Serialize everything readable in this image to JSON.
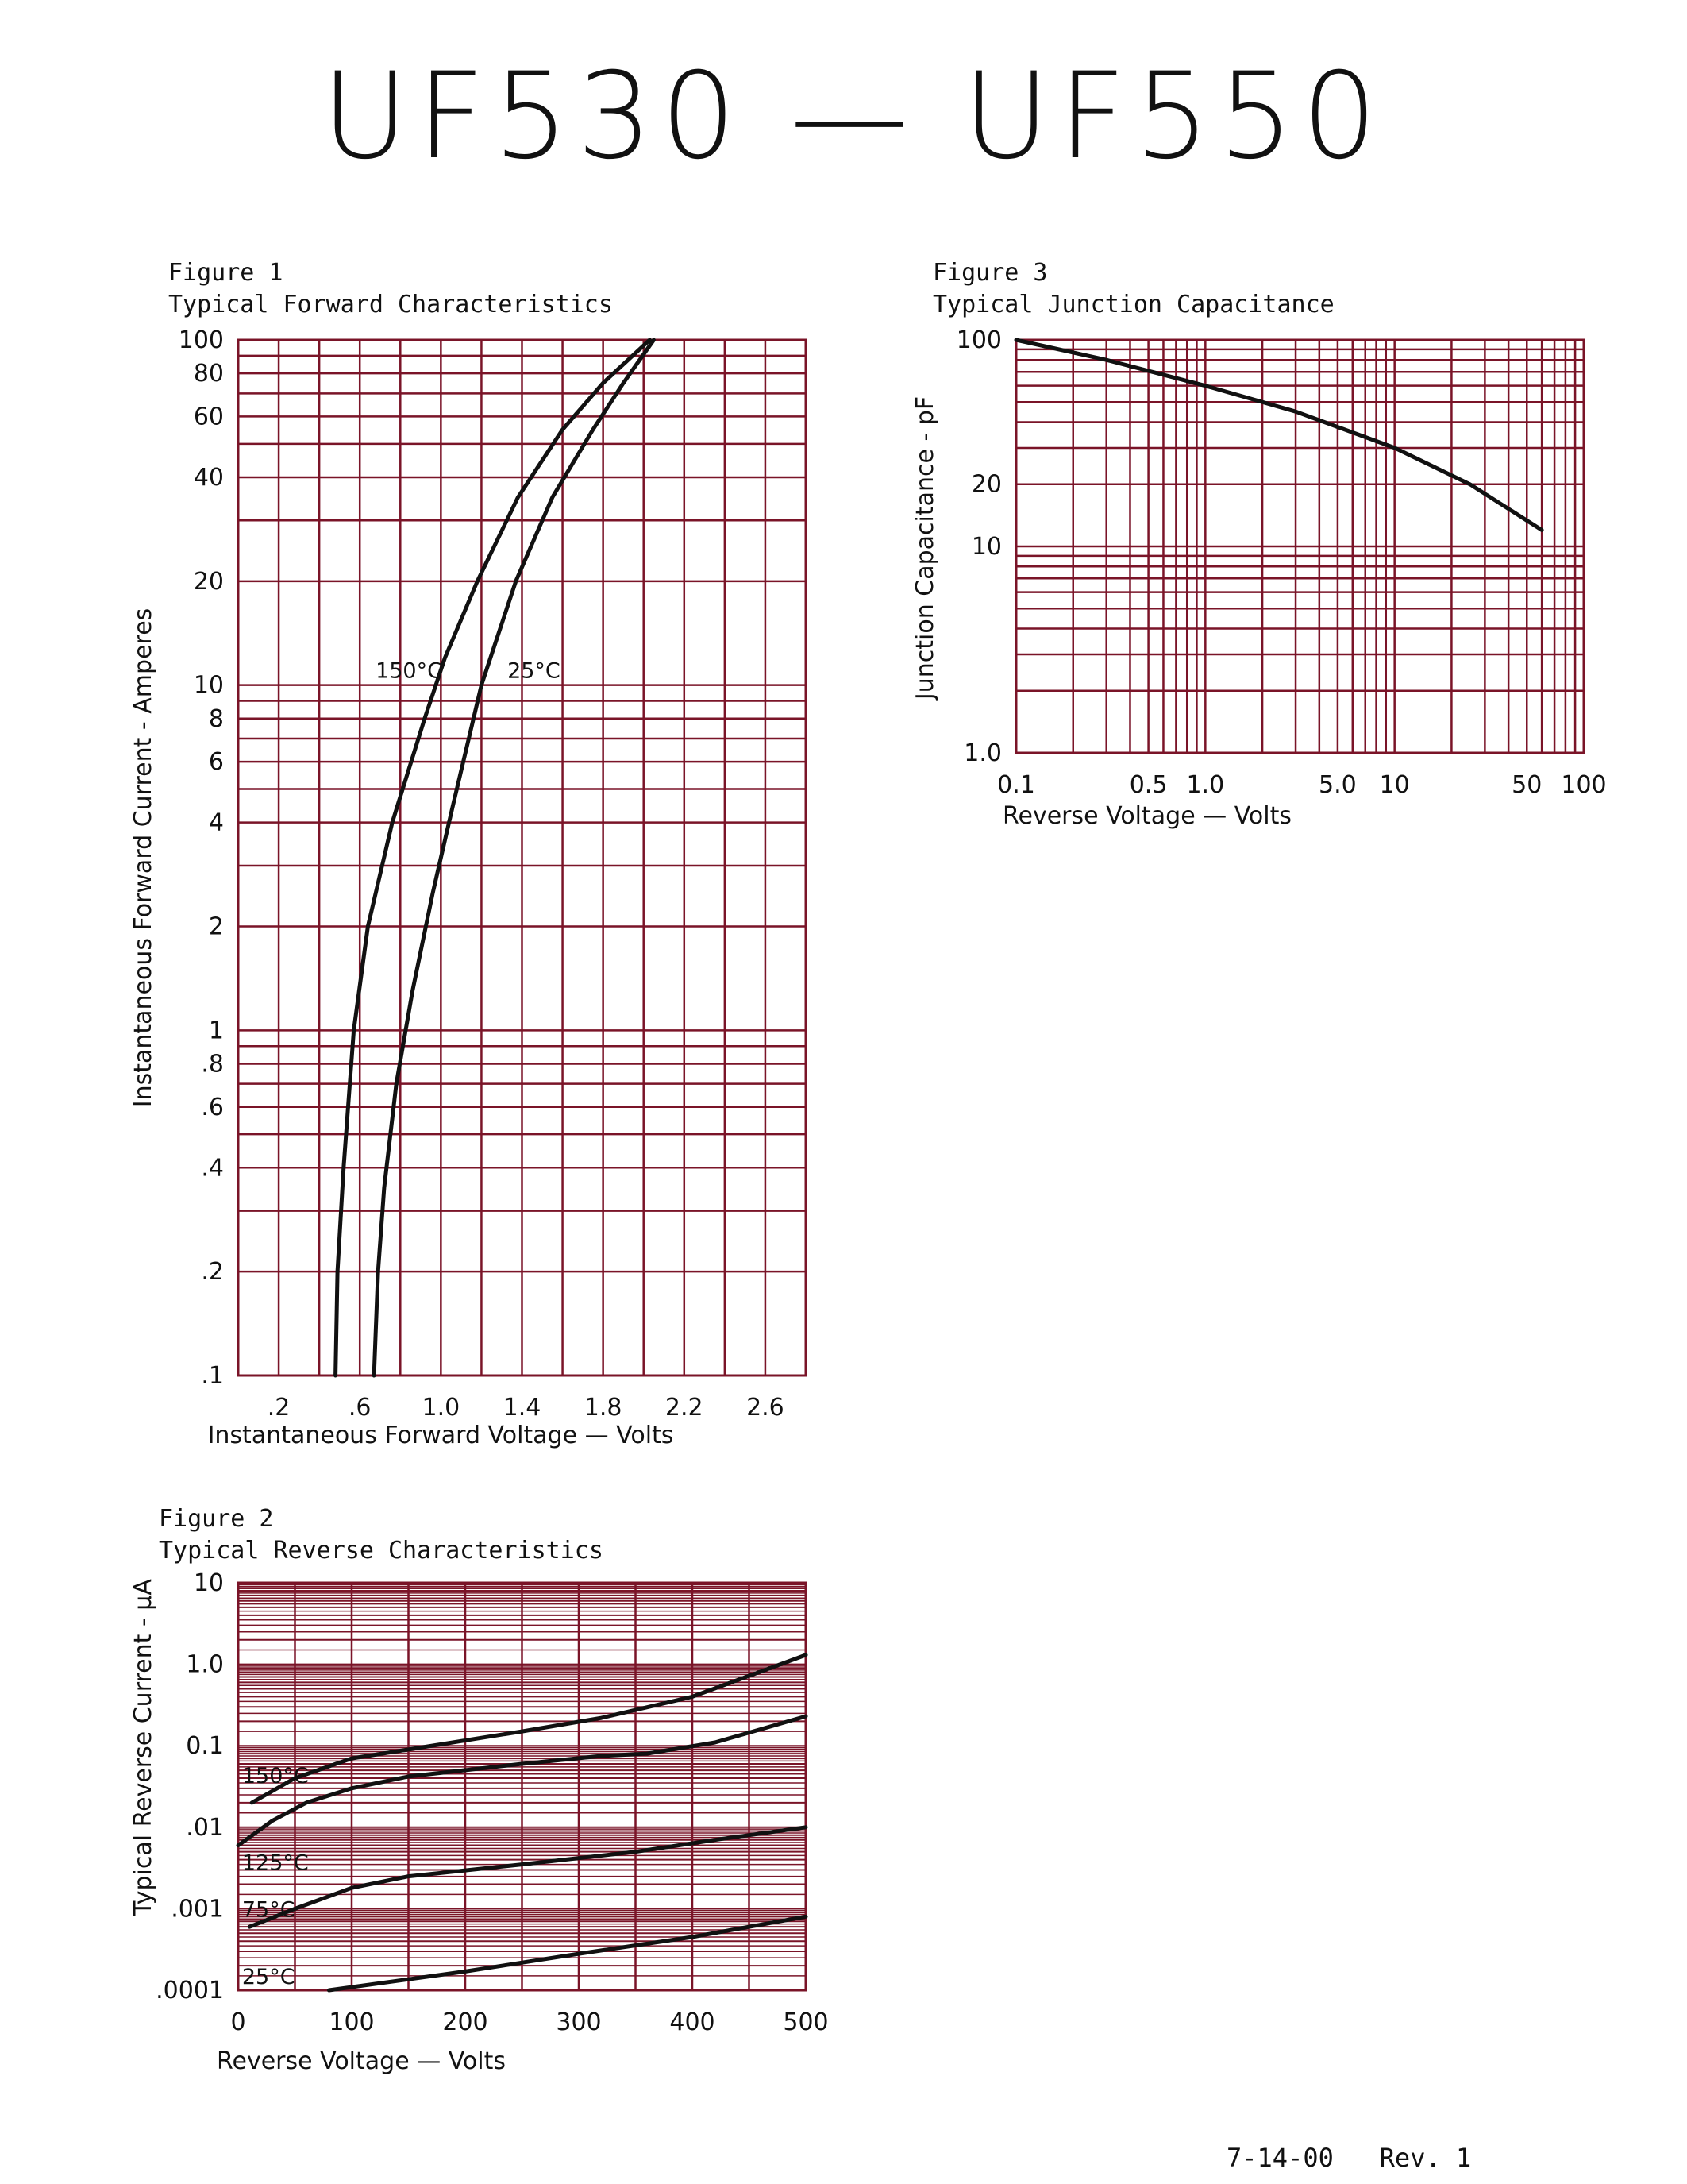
{
  "page": {
    "title": "UF530 — UF550",
    "footer": "7-14-00   Rev. 1",
    "grid_color": "#7a1428",
    "curve_color": "#111111"
  },
  "chart_data": [
    {
      "id": "fig1",
      "figure_label": "Figure 1",
      "title": "Typical Forward Characteristics",
      "type": "line",
      "xlabel": "Instantaneous Forward Voltage — Volts",
      "ylabel": "Instantaneous Forward Current - Amperes",
      "x_scale": "linear",
      "y_scale": "log",
      "xlim": [
        0,
        2.8
      ],
      "ylim": [
        0.1,
        100
      ],
      "x_ticks": [
        {
          "v": 0.2,
          "label": ".2"
        },
        {
          "v": 0.6,
          "label": ".6"
        },
        {
          "v": 1.0,
          "label": "1.0"
        },
        {
          "v": 1.4,
          "label": "1.4"
        },
        {
          "v": 1.8,
          "label": "1.8"
        },
        {
          "v": 2.2,
          "label": "2.2"
        },
        {
          "v": 2.6,
          "label": "2.6"
        }
      ],
      "y_ticks": [
        {
          "v": 0.1,
          "label": ".1"
        },
        {
          "v": 0.2,
          "label": ".2"
        },
        {
          "v": 0.4,
          "label": ".4"
        },
        {
          "v": 0.6,
          "label": ".6"
        },
        {
          "v": 0.8,
          "label": ".8"
        },
        {
          "v": 1,
          "label": "1"
        },
        {
          "v": 2,
          "label": "2"
        },
        {
          "v": 4,
          "label": "4"
        },
        {
          "v": 6,
          "label": "6"
        },
        {
          "v": 8,
          "label": "8"
        },
        {
          "v": 10,
          "label": "10"
        },
        {
          "v": 20,
          "label": "20"
        },
        {
          "v": 40,
          "label": "40"
        },
        {
          "v": 60,
          "label": "60"
        },
        {
          "v": 80,
          "label": "80"
        },
        {
          "v": 100,
          "label": "100"
        }
      ],
      "series": [
        {
          "name": "150°C",
          "label_at": {
            "x": 0.67,
            "y": 10.5
          },
          "points": [
            [
              0.48,
              0.1
            ],
            [
              0.49,
              0.2
            ],
            [
              0.52,
              0.4
            ],
            [
              0.57,
              1
            ],
            [
              0.64,
              2
            ],
            [
              0.76,
              4
            ],
            [
              0.92,
              8
            ],
            [
              1.02,
              12
            ],
            [
              1.18,
              20
            ],
            [
              1.38,
              35
            ],
            [
              1.6,
              55
            ],
            [
              1.8,
              75
            ],
            [
              2.03,
              100
            ]
          ]
        },
        {
          "name": "25°C",
          "label_at": {
            "x": 1.32,
            "y": 10.5
          },
          "points": [
            [
              0.67,
              0.1
            ],
            [
              0.69,
              0.2
            ],
            [
              0.72,
              0.35
            ],
            [
              0.78,
              0.7
            ],
            [
              0.86,
              1.3
            ],
            [
              0.96,
              2.5
            ],
            [
              1.06,
              4.5
            ],
            [
              1.2,
              10
            ],
            [
              1.37,
              20
            ],
            [
              1.55,
              35
            ],
            [
              1.75,
              55
            ],
            [
              1.9,
              75
            ],
            [
              2.05,
              100
            ]
          ]
        }
      ]
    },
    {
      "id": "fig2",
      "figure_label": "Figure 2",
      "title": "Typical Reverse Characteristics",
      "type": "line",
      "xlabel": "Reverse Voltage — Volts",
      "ylabel": "Typical Reverse Current - µA",
      "x_scale": "linear",
      "y_scale": "log",
      "xlim": [
        0,
        500
      ],
      "ylim": [
        0.0001,
        10
      ],
      "x_ticks": [
        {
          "v": 0,
          "label": "0"
        },
        {
          "v": 100,
          "label": "100"
        },
        {
          "v": 200,
          "label": "200"
        },
        {
          "v": 300,
          "label": "300"
        },
        {
          "v": 400,
          "label": "400"
        },
        {
          "v": 500,
          "label": "500"
        }
      ],
      "y_ticks": [
        {
          "v": 0.0001,
          "label": ".0001"
        },
        {
          "v": 0.001,
          "label": ".001"
        },
        {
          "v": 0.01,
          "label": ".01"
        },
        {
          "v": 0.1,
          "label": "0.1"
        },
        {
          "v": 1,
          "label": "1.0"
        },
        {
          "v": 10,
          "label": "10"
        }
      ],
      "series": [
        {
          "name": "150°C",
          "label_at": {
            "x": 2,
            "y": 0.035
          },
          "points": [
            [
              12,
              0.02
            ],
            [
              50,
              0.04
            ],
            [
              100,
              0.07
            ],
            [
              150,
              0.09
            ],
            [
              250,
              0.15
            ],
            [
              320,
              0.22
            ],
            [
              400,
              0.4
            ],
            [
              500,
              1.3
            ]
          ]
        },
        {
          "name": "125°C",
          "label_at": {
            "x": 2,
            "y": 0.003
          },
          "points": [
            [
              0,
              0.006
            ],
            [
              30,
              0.012
            ],
            [
              60,
              0.02
            ],
            [
              100,
              0.03
            ],
            [
              150,
              0.042
            ],
            [
              250,
              0.06
            ],
            [
              320,
              0.075
            ],
            [
              360,
              0.08
            ],
            [
              420,
              0.11
            ],
            [
              500,
              0.23
            ]
          ]
        },
        {
          "name": "75°C",
          "label_at": {
            "x": 2,
            "y": 0.0008
          },
          "points": [
            [
              10,
              0.0006
            ],
            [
              50,
              0.001
            ],
            [
              100,
              0.0018
            ],
            [
              150,
              0.0025
            ],
            [
              250,
              0.0035
            ],
            [
              350,
              0.005
            ],
            [
              420,
              0.007
            ],
            [
              500,
              0.01
            ]
          ]
        },
        {
          "name": "25°C",
          "label_at": {
            "x": 2,
            "y": 0.00012
          },
          "points": [
            [
              80,
              0.0001
            ],
            [
              200,
              0.00017
            ],
            [
              300,
              0.00028
            ],
            [
              400,
              0.00045
            ],
            [
              500,
              0.0008
            ]
          ]
        }
      ]
    },
    {
      "id": "fig3",
      "figure_label": "Figure 3",
      "title": "Typical Junction Capacitance",
      "type": "line",
      "xlabel": "Reverse Voltage — Volts",
      "ylabel": "Junction Capacitance - pF",
      "x_scale": "log",
      "y_scale": "log",
      "xlim": [
        0.1,
        100
      ],
      "ylim": [
        1,
        100
      ],
      "x_ticks": [
        {
          "v": 0.1,
          "label": "0.1"
        },
        {
          "v": 0.5,
          "label": "0.5"
        },
        {
          "v": 1,
          "label": "1.0"
        },
        {
          "v": 5,
          "label": "5.0"
        },
        {
          "v": 10,
          "label": "10"
        },
        {
          "v": 50,
          "label": "50"
        },
        {
          "v": 100,
          "label": "100"
        }
      ],
      "y_ticks": [
        {
          "v": 1,
          "label": "1.0"
        },
        {
          "v": 10,
          "label": "10"
        },
        {
          "v": 20,
          "label": "20"
        },
        {
          "v": 100,
          "label": "100"
        }
      ],
      "series": [
        {
          "name": "",
          "points": [
            [
              0.1,
              100
            ],
            [
              0.3,
              80
            ],
            [
              1,
              60
            ],
            [
              3,
              45
            ],
            [
              10,
              30
            ],
            [
              25,
              20
            ],
            [
              60,
              12
            ]
          ]
        }
      ]
    }
  ]
}
